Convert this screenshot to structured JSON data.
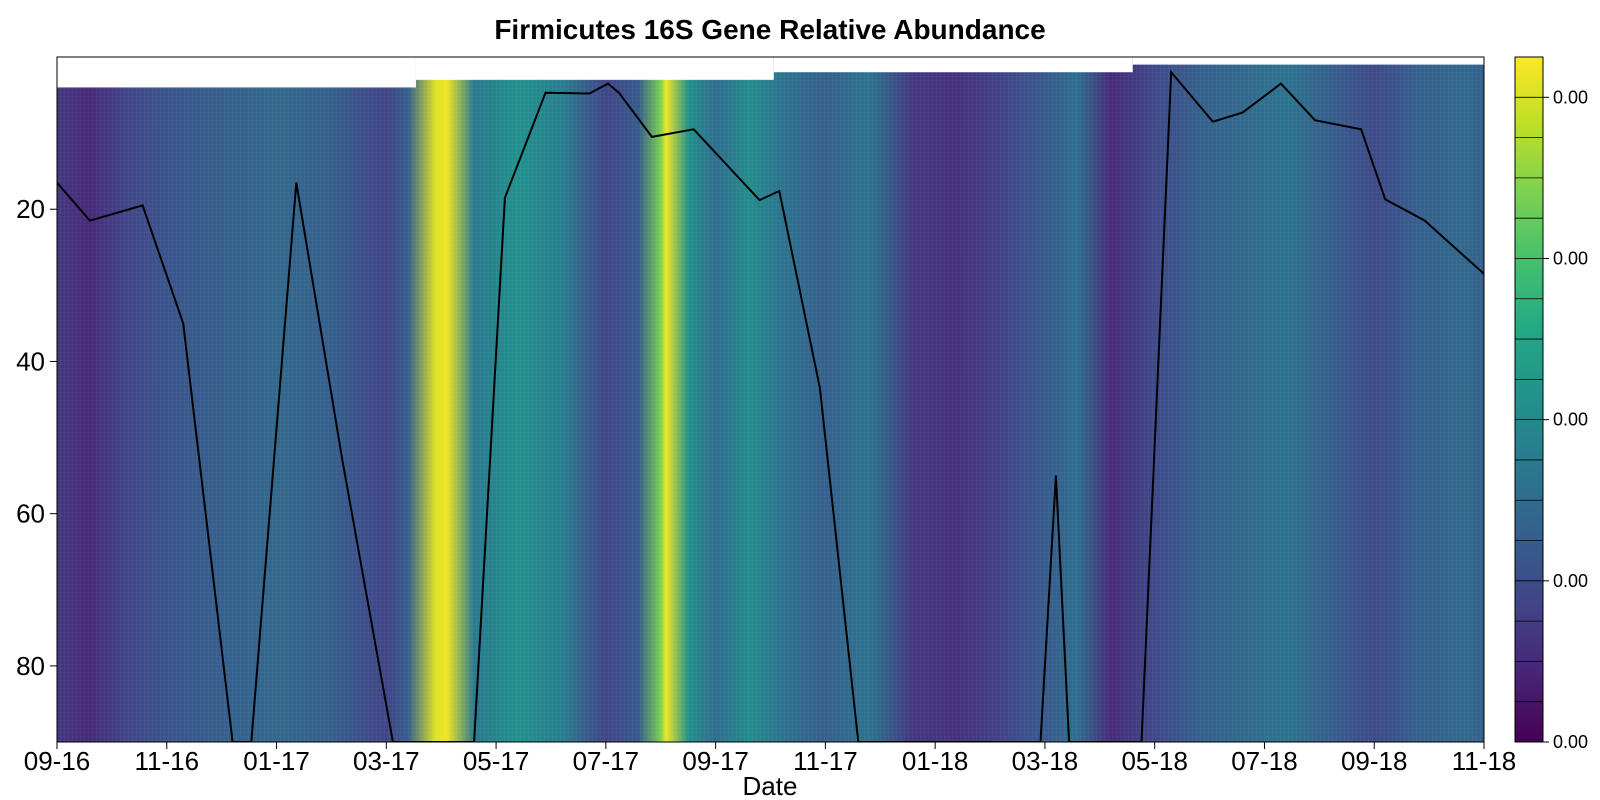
{
  "chart_data": {
    "type": "heatmap",
    "title": "Firmicutes 16S Gene Relative Abundance",
    "xlabel": "Date",
    "ylabel": "",
    "x_tick_labels": [
      "09-16",
      "11-16",
      "01-17",
      "03-17",
      "05-17",
      "07-17",
      "09-17",
      "11-17",
      "01-18",
      "03-18",
      "05-18",
      "07-18",
      "09-18",
      "11-18"
    ],
    "y_tick_labels": [
      "20",
      "40",
      "60",
      "80"
    ],
    "y_ticks": [
      20,
      40,
      60,
      80
    ],
    "ylim": [
      90,
      0
    ],
    "y_inverted": true,
    "colorbar_tick_labels": [
      "0.00",
      "0.00",
      "0.00",
      "0.00",
      "0.00"
    ],
    "colormap": [
      "#440154",
      "#482475",
      "#414487",
      "#355f8d",
      "#2a788e",
      "#21918c",
      "#22a884",
      "#44bf70",
      "#7ad151",
      "#bddf26",
      "#fde725"
    ],
    "abundance_profile": [
      {
        "x": 0.0,
        "v": 0.16
      },
      {
        "x": 0.3,
        "v": 0.12
      },
      {
        "x": 0.6,
        "v": 0.2
      },
      {
        "x": 1.0,
        "v": 0.26
      },
      {
        "x": 1.5,
        "v": 0.3
      },
      {
        "x": 2.0,
        "v": 0.33
      },
      {
        "x": 2.5,
        "v": 0.3
      },
      {
        "x": 3.0,
        "v": 0.2
      },
      {
        "x": 3.2,
        "v": 0.3
      },
      {
        "x": 3.45,
        "v": 0.95
      },
      {
        "x": 3.55,
        "v": 0.98
      },
      {
        "x": 3.8,
        "v": 0.4
      },
      {
        "x": 4.2,
        "v": 0.5
      },
      {
        "x": 4.6,
        "v": 0.42
      },
      {
        "x": 5.0,
        "v": 0.2
      },
      {
        "x": 5.3,
        "v": 0.28
      },
      {
        "x": 5.5,
        "v": 0.8
      },
      {
        "x": 5.55,
        "v": 0.98
      },
      {
        "x": 5.75,
        "v": 0.5
      },
      {
        "x": 6.0,
        "v": 0.35
      },
      {
        "x": 6.3,
        "v": 0.48
      },
      {
        "x": 6.6,
        "v": 0.38
      },
      {
        "x": 7.0,
        "v": 0.3
      },
      {
        "x": 7.4,
        "v": 0.38
      },
      {
        "x": 7.8,
        "v": 0.16
      },
      {
        "x": 8.2,
        "v": 0.14
      },
      {
        "x": 8.6,
        "v": 0.2
      },
      {
        "x": 9.0,
        "v": 0.28
      },
      {
        "x": 9.3,
        "v": 0.36
      },
      {
        "x": 9.6,
        "v": 0.12
      },
      {
        "x": 10.0,
        "v": 0.22
      },
      {
        "x": 10.4,
        "v": 0.3
      },
      {
        "x": 10.8,
        "v": 0.34
      },
      {
        "x": 11.2,
        "v": 0.38
      },
      {
        "x": 11.6,
        "v": 0.3
      },
      {
        "x": 12.0,
        "v": 0.22
      },
      {
        "x": 12.4,
        "v": 0.3
      },
      {
        "x": 12.8,
        "v": 0.34
      },
      {
        "x": 13.0,
        "v": 0.3
      }
    ],
    "line_series": [
      {
        "x": 0.0,
        "y": 16.5
      },
      {
        "x": 0.3,
        "y": 21.5
      },
      {
        "x": 0.78,
        "y": 19.5
      },
      {
        "x": 1.15,
        "y": 35
      },
      {
        "x": 1.6,
        "y": 90
      },
      {
        "x": 1.77,
        "y": 90
      },
      {
        "x": 2.18,
        "y": 16.5
      },
      {
        "x": 2.6,
        "y": 53
      },
      {
        "x": 3.06,
        "y": 90
      },
      {
        "x": 3.8,
        "y": 90
      },
      {
        "x": 4.08,
        "y": 18.5
      },
      {
        "x": 4.45,
        "y": 4.7
      },
      {
        "x": 4.85,
        "y": 4.8
      },
      {
        "x": 5.02,
        "y": 3.5
      },
      {
        "x": 5.12,
        "y": 4.7
      },
      {
        "x": 5.42,
        "y": 10.5
      },
      {
        "x": 5.8,
        "y": 9.5
      },
      {
        "x": 6.4,
        "y": 18.8
      },
      {
        "x": 6.58,
        "y": 17.6
      },
      {
        "x": 6.95,
        "y": 43.5
      },
      {
        "x": 7.3,
        "y": 90
      },
      {
        "x": 8.96,
        "y": 90
      },
      {
        "x": 9.1,
        "y": 55
      },
      {
        "x": 9.22,
        "y": 90
      },
      {
        "x": 9.88,
        "y": 90
      },
      {
        "x": 10.15,
        "y": 2.0
      },
      {
        "x": 10.53,
        "y": 8.5
      },
      {
        "x": 10.8,
        "y": 7.3
      },
      {
        "x": 11.15,
        "y": 3.5
      },
      {
        "x": 11.46,
        "y": 8.3
      },
      {
        "x": 11.88,
        "y": 9.5
      },
      {
        "x": 12.1,
        "y": 18.7
      },
      {
        "x": 12.46,
        "y": 21.5
      },
      {
        "x": 13.0,
        "y": 28.5
      }
    ],
    "surface_top_steps": [
      {
        "x0": 0.0,
        "x1": 3.27,
        "y": 4.0
      },
      {
        "x0": 3.27,
        "x1": 6.53,
        "y": 3.0
      },
      {
        "x0": 6.53,
        "x1": 9.8,
        "y": 2.0
      },
      {
        "x0": 9.8,
        "x1": 13.0,
        "y": 1.0
      }
    ],
    "grid": false,
    "legend": "none",
    "line_color": "#000000"
  }
}
